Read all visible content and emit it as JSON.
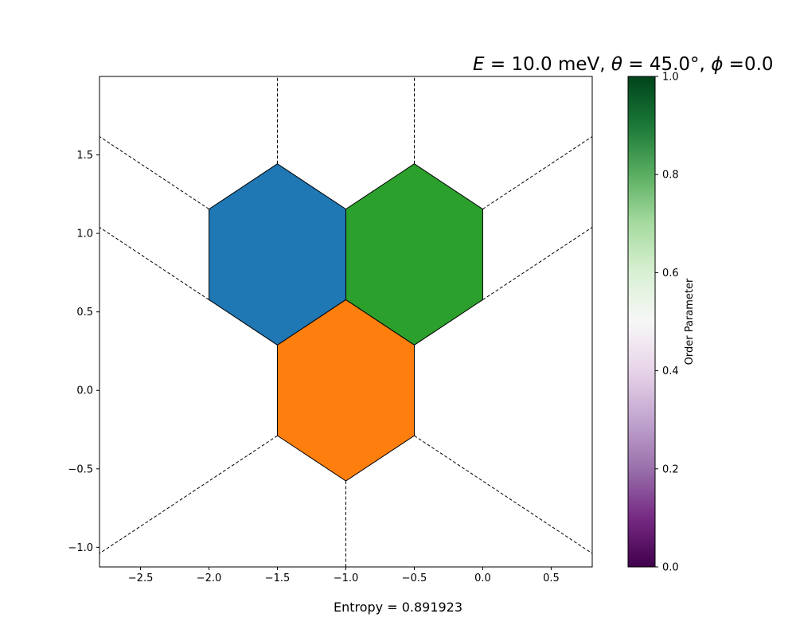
{
  "chart_data": {
    "type": "hexagonal-lattice",
    "title": {
      "prefix": "E",
      "energy": " = 10.0 meV, ",
      "theta_sym": "θ",
      "theta": " = 45.0°, ",
      "phi_sym": "ϕ",
      "phi": " =0.0"
    },
    "xlim": [
      -2.8,
      0.8
    ],
    "ylim": [
      -1.125,
      2.0
    ],
    "xticks": [
      -2.5,
      -2.0,
      -1.5,
      -1.0,
      -0.5,
      0.0,
      0.5
    ],
    "xtick_labels": [
      "−2.5",
      "−2.0",
      "−1.5",
      "−1.0",
      "−0.5",
      "0.0",
      "0.5"
    ],
    "yticks": [
      -1.0,
      -0.5,
      0.0,
      0.5,
      1.0,
      1.5
    ],
    "ytick_labels": [
      "−1.0",
      "−0.5",
      "0.0",
      "0.5",
      "1.0",
      "1.5"
    ],
    "hexagon_radius": 0.57735,
    "hexagons": [
      {
        "name": "hexagon-blue",
        "center": [
          -1.5,
          0.866
        ],
        "color": "#1f77b4"
      },
      {
        "name": "hexagon-green",
        "center": [
          -0.5,
          0.866
        ],
        "color": "#2ca02c"
      },
      {
        "name": "hexagon-orange",
        "center": [
          -1.0,
          0.0
        ],
        "color": "#ff7f0e"
      }
    ],
    "dashed_lines": [
      [
        [
          -1.5,
          1.443
        ],
        [
          -1.5,
          2.0
        ]
      ],
      [
        [
          -0.5,
          1.443
        ],
        [
          -0.5,
          2.0
        ]
      ],
      [
        [
          -2.0,
          1.155
        ],
        [
          -2.8,
          1.617
        ]
      ],
      [
        [
          0.0,
          1.155
        ],
        [
          0.8,
          1.617
        ]
      ],
      [
        [
          -2.0,
          0.577
        ],
        [
          -2.8,
          1.039
        ]
      ],
      [
        [
          0.0,
          0.577
        ],
        [
          0.8,
          1.039
        ]
      ],
      [
        [
          -1.5,
          -0.289
        ],
        [
          -2.8,
          -1.039
        ]
      ],
      [
        [
          -0.5,
          -0.289
        ],
        [
          0.8,
          -1.039
        ]
      ],
      [
        [
          -1.0,
          -0.577
        ],
        [
          -1.0,
          -1.125
        ]
      ]
    ],
    "colorbar": {
      "label": "Order Parameter",
      "range": [
        0.0,
        1.0
      ],
      "ticks": [
        "0.0",
        "0.2",
        "0.4",
        "0.6",
        "0.8",
        "1.0"
      ],
      "colormap": "PRGn"
    },
    "entropy_label": "Entropy = 0.891923"
  }
}
